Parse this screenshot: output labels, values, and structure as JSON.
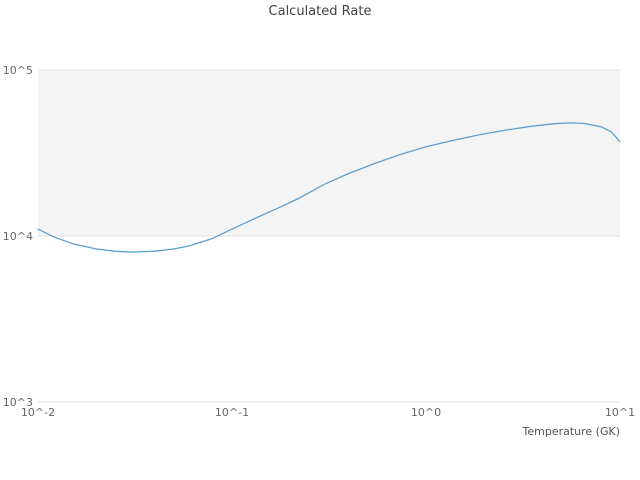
{
  "chart_data": {
    "type": "line",
    "title": "Calculated Rate",
    "xlabel": "Temperature (GK)",
    "ylabel": "",
    "x_scale": "log",
    "y_scale": "log",
    "xlim": [
      0.01,
      10
    ],
    "ylim": [
      1000,
      100000
    ],
    "grid": "horizontal",
    "legend": "none",
    "band": {
      "from": 10000,
      "to": 100000
    },
    "x_ticks": [
      {
        "value": 0.01,
        "label": "10^-2"
      },
      {
        "value": 0.1,
        "label": "10^-1"
      },
      {
        "value": 1,
        "label": "10^0"
      },
      {
        "value": 10,
        "label": "10^1"
      }
    ],
    "y_ticks": [
      {
        "value": 100000,
        "label": "10^5"
      },
      {
        "value": 10000,
        "label": "10^4"
      },
      {
        "value": 1000,
        "label": "10^3"
      }
    ],
    "series": [
      {
        "name": "Calculated Rate",
        "x": [
          0.01,
          0.012,
          0.015,
          0.02,
          0.025,
          0.03,
          0.04,
          0.05,
          0.06,
          0.08,
          0.1,
          0.13,
          0.17,
          0.22,
          0.3,
          0.4,
          0.55,
          0.75,
          1,
          1.4,
          1.9,
          2.6,
          3.5,
          4.5,
          5.5,
          6.5,
          8,
          9,
          10
        ],
        "y": [
          11000,
          9900,
          9000,
          8350,
          8100,
          8000,
          8100,
          8350,
          8700,
          9700,
          11000,
          12700,
          14600,
          16800,
          20500,
          23800,
          27500,
          31200,
          34500,
          37800,
          40800,
          43500,
          45800,
          47400,
          48000,
          47700,
          45500,
          42500,
          37000
        ]
      }
    ]
  },
  "colors": {
    "line": "#5ba0d0",
    "band": "#f4f4f4",
    "grid": "#e2e2e2",
    "title": "#444444",
    "tick": "#666666",
    "axis_label": "#555555"
  }
}
